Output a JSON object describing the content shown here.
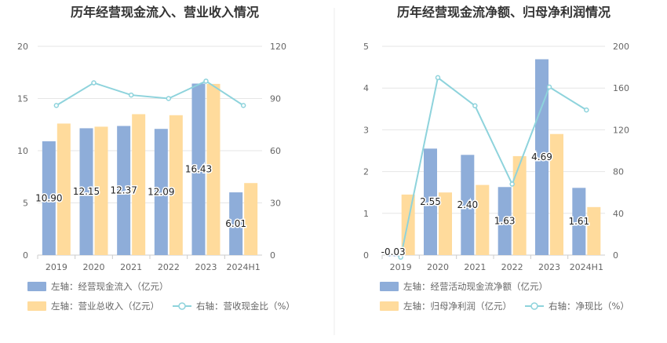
{
  "colors": {
    "bar_primary": "#8eadd9",
    "bar_secondary": "#ffdb9c",
    "line": "#8ed3dc",
    "grid": "#e6e6e6",
    "axis_text": "#666666",
    "title_text": "#333333"
  },
  "chart_data": [
    {
      "type": "bar",
      "title": "历年经营现金流入、营业收入情况",
      "categories": [
        "2019",
        "2020",
        "2021",
        "2022",
        "2023",
        "2024H1"
      ],
      "y_left": {
        "ticks": [
          "0",
          "5",
          "10",
          "15",
          "20"
        ],
        "range": [
          0,
          20
        ]
      },
      "y_right": {
        "ticks": [
          "0",
          "30",
          "60",
          "90",
          "120"
        ],
        "range": [
          0,
          120
        ]
      },
      "series": [
        {
          "name": "左轴：经营现金流入（亿元）",
          "kind": "bar",
          "axis": "left",
          "color": "#8eadd9",
          "values": [
            10.9,
            12.15,
            12.37,
            12.09,
            16.43,
            6.01
          ],
          "labels": [
            "10.90",
            "12.15",
            "12.37",
            "12.09",
            "16.43",
            "6.01"
          ]
        },
        {
          "name": "左轴：营业总收入（亿元）",
          "kind": "bar",
          "axis": "left",
          "color": "#ffdb9c",
          "values": [
            12.6,
            12.3,
            13.5,
            13.4,
            16.4,
            6.9
          ]
        },
        {
          "name": "右轴：营收现金比（%）",
          "kind": "line",
          "axis": "right",
          "color": "#8ed3dc",
          "values": [
            86,
            99,
            92,
            90,
            100,
            86
          ]
        }
      ],
      "legend_placement": "bottom"
    },
    {
      "type": "bar",
      "title": "历年经营现金流净额、归母净利润情况",
      "categories": [
        "2019",
        "2020",
        "2021",
        "2022",
        "2023",
        "2024H1"
      ],
      "y_left": {
        "ticks": [
          "0",
          "1",
          "2",
          "3",
          "4",
          "5"
        ],
        "range": [
          0,
          5
        ]
      },
      "y_right": {
        "ticks": [
          "0",
          "40",
          "80",
          "120",
          "160",
          "200"
        ],
        "range": [
          0,
          200
        ]
      },
      "series": [
        {
          "name": "左轴：经营活动现金流净额（亿元）",
          "kind": "bar",
          "axis": "left",
          "color": "#8eadd9",
          "values": [
            -0.03,
            2.55,
            2.4,
            1.63,
            4.69,
            1.61
          ],
          "labels": [
            "-0.03",
            "2.55",
            "2.40",
            "1.63",
            "4.69",
            "1.61"
          ]
        },
        {
          "name": "左轴：归母净利润（亿元）",
          "kind": "bar",
          "axis": "left",
          "color": "#ffdb9c",
          "values": [
            1.45,
            1.5,
            1.68,
            2.37,
            2.9,
            1.15
          ]
        },
        {
          "name": "右轴：净现比（%）",
          "kind": "line",
          "axis": "right",
          "color": "#8ed3dc",
          "values": [
            -2,
            170,
            143,
            68,
            161,
            139
          ]
        }
      ],
      "legend_placement": "bottom"
    }
  ]
}
